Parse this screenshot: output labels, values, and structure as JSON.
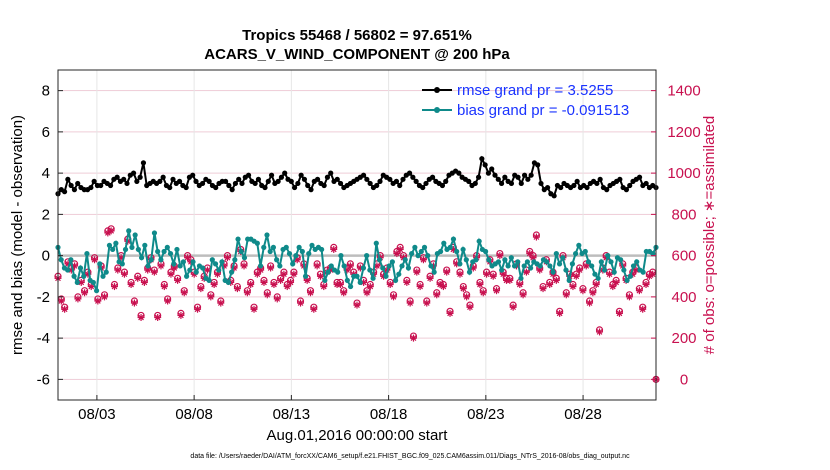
{
  "chart_data": {
    "type": "line",
    "title_line1": "Tropics 55468 / 56802 = 97.651%",
    "title_line2": "ACARS_V_WIND_COMPONENT @ 200 hPa",
    "xlabel": "Aug.01,2016 00:00:00 start",
    "ylabel_left": "rmse and bias (model - observation)",
    "ylabel_right": "# of obs: o=possible; ∗=assimilated",
    "x_tick_labels": [
      "08/03",
      "08/08",
      "08/13",
      "08/18",
      "08/23",
      "08/28"
    ],
    "x_tick_days": [
      3,
      8,
      13,
      18,
      23,
      28
    ],
    "xlim_days": [
      1,
      31.75
    ],
    "ylim_left": [
      -7,
      9
    ],
    "yticks_left": [
      -6,
      -4,
      -2,
      0,
      2,
      4,
      6,
      8
    ],
    "ylim_right": [
      -100,
      1500
    ],
    "yticks_right": [
      0,
      200,
      400,
      600,
      800,
      1000,
      1200,
      1400
    ],
    "grid": true,
    "legend_position": "top-right",
    "legend": [
      {
        "label": "rmse grand pr = 3.5255",
        "color": "#000000"
      },
      {
        "label": "bias grand pr = -0.091513",
        "color": "#0f8a8a"
      }
    ],
    "colors": {
      "rmse": "#000000",
      "bias": "#0f8a8a",
      "obs": "#c8104f",
      "zero_line": "#bdbdbd"
    },
    "series": [
      {
        "name": "rmse",
        "axis": "left",
        "values": [
          3.0,
          3.2,
          3.1,
          3.7,
          3.4,
          3.2,
          3.5,
          3.3,
          3.2,
          3.2,
          3.3,
          3.6,
          3.4,
          3.4,
          3.6,
          3.5,
          3.4,
          3.7,
          3.8,
          3.6,
          3.7,
          3.5,
          3.9,
          4.0,
          3.6,
          3.8,
          4.5,
          3.4,
          3.5,
          3.6,
          3.5,
          3.6,
          3.8,
          3.4,
          3.3,
          3.7,
          3.5,
          3.6,
          3.4,
          3.3,
          3.8,
          3.9,
          3.6,
          3.4,
          3.5,
          3.7,
          3.6,
          3.4,
          3.3,
          3.5,
          3.6,
          3.6,
          3.4,
          3.2,
          3.5,
          3.7,
          3.5,
          3.8,
          3.9,
          3.6,
          3.5,
          3.7,
          3.4,
          3.3,
          3.6,
          3.9,
          3.5,
          3.6,
          3.8,
          4.0,
          3.7,
          3.6,
          3.3,
          3.5,
          3.9,
          3.7,
          3.4,
          3.2,
          3.6,
          3.7,
          3.5,
          3.4,
          3.8,
          4.0,
          3.6,
          3.7,
          3.5,
          3.3,
          3.4,
          3.5,
          3.6,
          3.7,
          3.8,
          3.9,
          3.7,
          3.5,
          3.3,
          3.4,
          3.6,
          3.9,
          3.8,
          3.7,
          3.5,
          3.6,
          3.4,
          3.7,
          3.9,
          4.0,
          3.8,
          3.6,
          3.4,
          3.3,
          3.5,
          3.7,
          3.8,
          3.6,
          3.5,
          3.4,
          3.6,
          3.9,
          4.0,
          4.1,
          4.0,
          3.8,
          3.7,
          3.6,
          3.4,
          3.5,
          3.8,
          4.7,
          4.4,
          4.0,
          4.2,
          3.9,
          3.7,
          3.5,
          3.8,
          3.6,
          3.5,
          3.9,
          3.8,
          3.5,
          3.9,
          3.7,
          3.9,
          4.5,
          4.4,
          3.5,
          3.2,
          3.3,
          3.0,
          2.9,
          3.4,
          3.3,
          3.5,
          3.4,
          3.3,
          3.4,
          3.6,
          3.3,
          3.4,
          3.3,
          3.5,
          3.6,
          3.5,
          3.7,
          3.3,
          3.2,
          3.4,
          3.5,
          3.6,
          3.7,
          3.3,
          3.2,
          3.4,
          3.6,
          3.7,
          3.8,
          3.4,
          3.5,
          3.3,
          3.4,
          3.3
        ]
      },
      {
        "name": "bias",
        "axis": "left",
        "values": [
          0.4,
          -0.2,
          -0.6,
          -0.7,
          -0.2,
          -1.0,
          -1.3,
          -0.6,
          -1.0,
          0.1,
          -1.2,
          -1.3,
          -1.7,
          -0.4,
          -1.0,
          -0.8,
          0.5,
          0.3,
          0.6,
          -0.3,
          -0.4,
          0.3,
          1.2,
          0.4,
          1.0,
          0.3,
          -0.1,
          0.5,
          -0.5,
          -0.2,
          1.1,
          0.2,
          -0.2,
          0.2,
          0.4,
          0.1,
          -0.4,
          0.3,
          -0.5,
          -0.3,
          -1.0,
          -0.7,
          -0.3,
          -0.8,
          -0.5,
          -0.6,
          -1.1,
          -1.2,
          -0.2,
          -0.4,
          -0.7,
          -0.3,
          -1.2,
          -1.3,
          -0.8,
          -0.2,
          0.8,
          0.2,
          -0.1,
          0.8,
          0.8,
          0.7,
          0.6,
          -0.5,
          0.4,
          1.0,
          0.2,
          0.4,
          -0.2,
          -0.5,
          0.3,
          0.4,
          0.1,
          -0.4,
          0.0,
          0.4,
          0.2,
          -1.0,
          0.1,
          0.5,
          0.3,
          0.4,
          0.3,
          -1.2,
          -0.8,
          -0.5,
          -0.7,
          -0.8,
          0.0,
          -0.5,
          -1.2,
          -1.5,
          -1.0,
          -1.0,
          -1.3,
          -0.6,
          0.0,
          -0.7,
          -1.1,
          0.6,
          -0.2,
          -0.6,
          -1.0,
          -0.5,
          -0.3,
          -1.2,
          -0.9,
          -0.5,
          -0.2,
          -0.6,
          0.1,
          0.4,
          0.0,
          0.2,
          0.4,
          0.0,
          -0.5,
          -0.8,
          0.1,
          0.2,
          0.6,
          0.3,
          0.4,
          0.8,
          0.2,
          -0.4,
          0.3,
          -0.2,
          -0.8,
          -0.3,
          -0.2,
          0.7,
          0.3,
          0.2,
          -0.2,
          -0.5,
          -0.4,
          -0.3,
          -0.7,
          -0.2,
          -0.5,
          -0.1,
          -0.5,
          -0.3,
          -1.1,
          -0.5,
          -0.3,
          -0.6,
          -0.3,
          -0.4,
          -0.5,
          -0.2,
          -0.3,
          -0.5,
          -0.8,
          0.1,
          -0.4,
          -0.1,
          -0.7,
          -1.2,
          -0.4,
          0.1,
          0.5,
          0.1,
          0.2,
          -0.3,
          -0.5,
          -0.9,
          -1.1,
          -0.3,
          -0.7,
          0.0,
          -0.3,
          -0.8,
          -0.1,
          -0.2,
          -0.7,
          -1.2,
          -1.0,
          -0.5,
          -0.3,
          -0.7,
          -0.8,
          0.2,
          0.2,
          0.1,
          0.4
        ]
      },
      {
        "name": "obs_possible",
        "axis": "right",
        "values": [
          500,
          390,
          350,
          570,
          540,
          560,
          400,
          480,
          430,
          520,
          460,
          590,
          390,
          550,
          410,
          720,
          730,
          460,
          540,
          600,
          520,
          680,
          470,
          380,
          500,
          310,
          480,
          540,
          590,
          530,
          310,
          560,
          460,
          390,
          520,
          550,
          490,
          320,
          430,
          600,
          580,
          520,
          350,
          450,
          500,
          540,
          410,
          470,
          520,
          380,
          560,
          600,
          480,
          550,
          450,
          630,
          560,
          430,
          470,
          350,
          520,
          540,
          480,
          420,
          550,
          470,
          400,
          490,
          520,
          460,
          480,
          520,
          590,
          380,
          560,
          490,
          430,
          350,
          560,
          510,
          460,
          530,
          540,
          640,
          470,
          470,
          430,
          540,
          560,
          520,
          370,
          550,
          480,
          430,
          460,
          520,
          560,
          600,
          510,
          540,
          470,
          410,
          620,
          640,
          600,
          480,
          380,
          210,
          530,
          460,
          590,
          380,
          500,
          560,
          420,
          470,
          460,
          530,
          330,
          640,
          570,
          520,
          450,
          410,
          360,
          550,
          600,
          470,
          430,
          520,
          580,
          510,
          440,
          610,
          520,
          490,
          490,
          360,
          560,
          470,
          420,
          530,
          620,
          600,
          700,
          540,
          450,
          580,
          470,
          520,
          490,
          330,
          600,
          420,
          510,
          460,
          510,
          540,
          440,
          560,
          380,
          430,
          470,
          240,
          540,
          600,
          520,
          460,
          480,
          330,
          560,
          490,
          410,
          520,
          540,
          440,
          350,
          470,
          510,
          520,
          0
        ]
      },
      {
        "name": "obs_assimilated",
        "axis": "right",
        "values": [
          490,
          380,
          340,
          560,
          530,
          550,
          390,
          470,
          420,
          510,
          450,
          580,
          380,
          540,
          400,
          710,
          720,
          450,
          530,
          590,
          510,
          670,
          460,
          370,
          490,
          300,
          470,
          530,
          580,
          520,
          300,
          550,
          450,
          380,
          510,
          540,
          480,
          310,
          420,
          590,
          570,
          510,
          340,
          440,
          490,
          530,
          400,
          460,
          510,
          370,
          550,
          590,
          470,
          540,
          440,
          620,
          550,
          420,
          460,
          340,
          510,
          530,
          470,
          410,
          540,
          460,
          390,
          480,
          510,
          450,
          470,
          510,
          580,
          370,
          550,
          480,
          420,
          340,
          550,
          500,
          450,
          520,
          530,
          630,
          460,
          460,
          420,
          530,
          550,
          510,
          360,
          540,
          470,
          420,
          450,
          510,
          550,
          590,
          500,
          530,
          460,
          400,
          610,
          630,
          590,
          470,
          370,
          200,
          520,
          450,
          580,
          370,
          490,
          550,
          410,
          460,
          450,
          520,
          320,
          630,
          560,
          510,
          440,
          400,
          350,
          540,
          590,
          460,
          420,
          510,
          570,
          500,
          430,
          600,
          510,
          480,
          480,
          350,
          550,
          460,
          410,
          520,
          610,
          590,
          690,
          530,
          440,
          570,
          460,
          510,
          480,
          320,
          590,
          410,
          500,
          450,
          500,
          530,
          430,
          550,
          370,
          420,
          460,
          230,
          530,
          590,
          510,
          450,
          470,
          320,
          550,
          480,
          400,
          510,
          530,
          430,
          340,
          460,
          500,
          510,
          0
        ]
      }
    ]
  },
  "footer": {
    "data_file": "data file: /Users/raeder/DAI/ATM_forcXX/CAM6_setup/f.e21.FHIST_BGC.f09_025.CAM6assim.011/Diags_NTrS_2016-08/obs_diag_output.nc"
  }
}
